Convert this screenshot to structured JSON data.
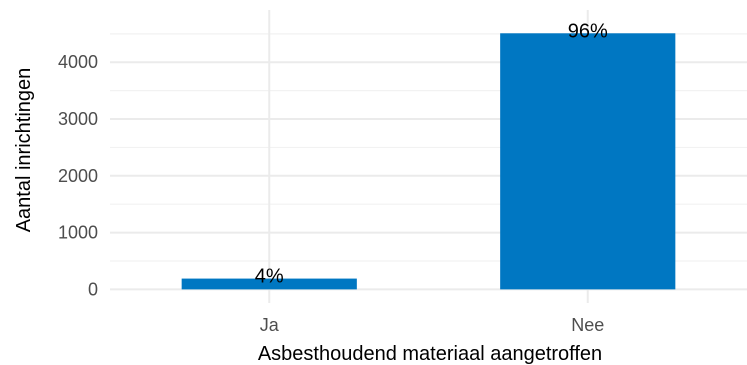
{
  "chart_data": {
    "type": "bar",
    "categories": [
      "Ja",
      "Nee"
    ],
    "values": [
      190,
      4510
    ],
    "data_labels": [
      "4%",
      "96%"
    ],
    "xlabel": "Asbesthoudend materiaal aangetroffen",
    "ylabel": "Aantal inrichtingen",
    "yticks": [
      0,
      1000,
      2000,
      3000,
      4000
    ],
    "ylim": [
      -240,
      4920
    ],
    "grid": true,
    "bar_color": "#0077c2"
  }
}
